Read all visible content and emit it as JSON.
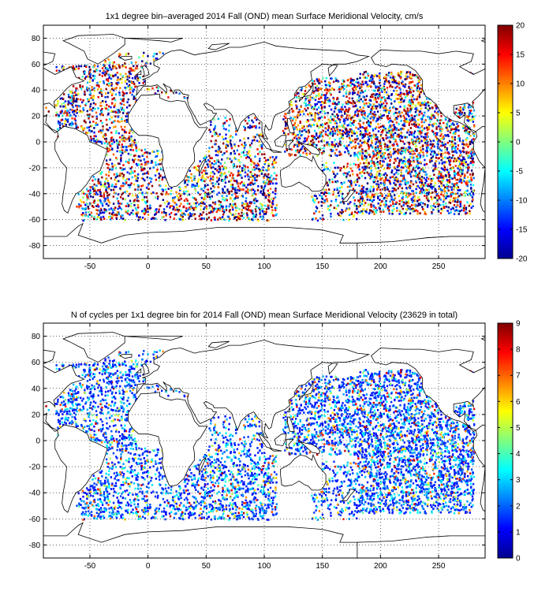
{
  "panels": [
    {
      "title": "1x1 degree bin–averaged 2014 Fall (OND) mean Surface Meridional Velocity, cm/s",
      "x_ticks": [
        "-50",
        "0",
        "50",
        "100",
        "150",
        "200",
        "250"
      ],
      "y_ticks": [
        "80",
        "60",
        "40",
        "20",
        "0",
        "-20",
        "-40",
        "-60",
        "-80"
      ],
      "colorbar": {
        "min": -20,
        "max": 20,
        "ticks": [
          "20",
          "15",
          "10",
          "5",
          "0",
          "-5",
          "-10",
          "-15",
          "-20"
        ],
        "colormap": "jet"
      }
    },
    {
      "title": "N of cycles per 1x1 degree bin for 2014 Fall (OND) mean Surface Meridional Velocity (23629 in total)",
      "x_ticks": [
        "-50",
        "0",
        "50",
        "100",
        "150",
        "200",
        "250"
      ],
      "y_ticks": [
        "80",
        "60",
        "40",
        "20",
        "0",
        "-20",
        "-40",
        "-60",
        "-80"
      ],
      "colorbar": {
        "min": 0,
        "max": 9,
        "ticks": [
          "9",
          "8",
          "7",
          "6",
          "5",
          "4",
          "3",
          "2",
          "1",
          "0"
        ],
        "colormap": "jet"
      }
    }
  ],
  "chart_data": [
    {
      "type": "heatmap",
      "title": "1x1 degree bin–averaged 2014 Fall (OND) mean Surface Meridional Velocity, cm/s",
      "xlim": [
        -90,
        290
      ],
      "ylim": [
        -90,
        90
      ],
      "colorbar_range": [
        -20,
        20
      ],
      "grid": true
    },
    {
      "type": "heatmap",
      "title": "N of cycles per 1x1 degree bin for 2014 Fall (OND) mean Surface Meridional Velocity (23629 in total)",
      "xlim": [
        -90,
        290
      ],
      "ylim": [
        -90,
        90
      ],
      "colorbar_range": [
        0,
        9
      ],
      "total_cycles": 23629,
      "grid": true
    }
  ]
}
